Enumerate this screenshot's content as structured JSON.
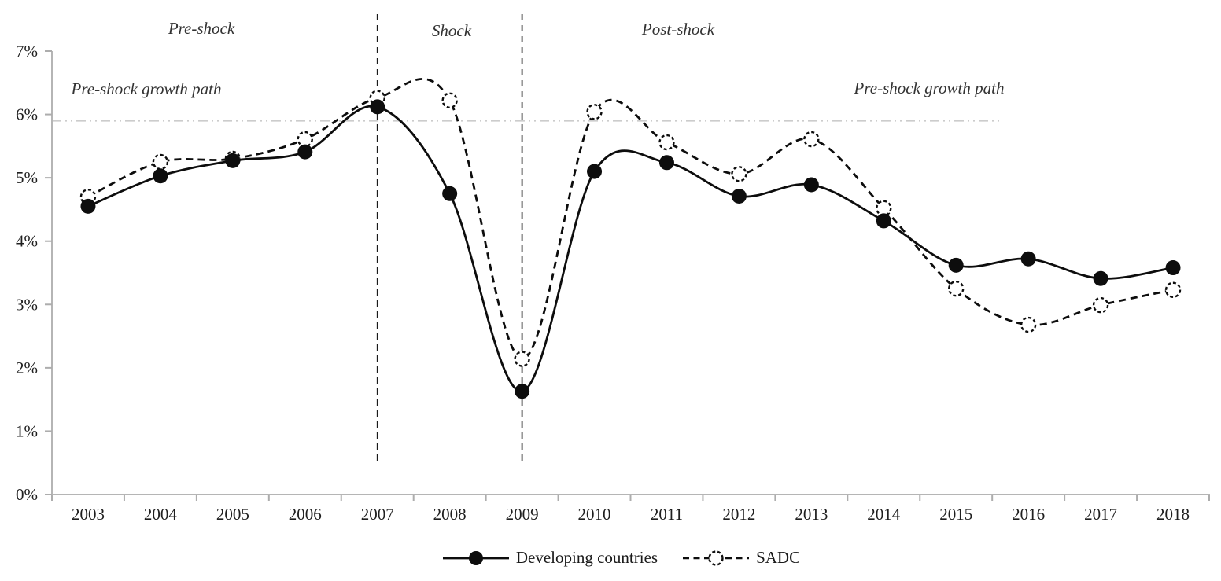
{
  "chart_data": {
    "type": "line",
    "title": "",
    "categories": [
      "2003",
      "2004",
      "2005",
      "2006",
      "2007",
      "2008",
      "2009",
      "2010",
      "2011",
      "2012",
      "2013",
      "2014",
      "2015",
      "2016",
      "2017",
      "2018"
    ],
    "series": [
      {
        "name": "Developing countries",
        "style": "solid",
        "marker": "filled-circle",
        "values": [
          4.55,
          5.03,
          5.27,
          5.41,
          6.12,
          4.75,
          1.63,
          5.1,
          5.24,
          4.71,
          4.89,
          4.32,
          3.62,
          3.72,
          3.41,
          3.58
        ]
      },
      {
        "name": "SADC",
        "style": "dashed",
        "marker": "dashed-open-circle",
        "values": [
          4.7,
          5.25,
          5.3,
          5.61,
          6.26,
          6.22,
          2.14,
          6.04,
          5.56,
          5.06,
          5.61,
          4.52,
          3.25,
          2.68,
          2.99,
          3.23
        ]
      }
    ],
    "ylim": [
      0,
      7
    ],
    "ytick_labels": [
      "0%",
      "1%",
      "2%",
      "3%",
      "4%",
      "5%",
      "6%",
      "7%"
    ],
    "grid": "off",
    "smoothing": "catmull-rom",
    "legend_position": "bottom-center",
    "phase_labels": [
      "Pre-shock",
      "Shock",
      "Post-shock"
    ],
    "reference_lines": [
      {
        "name": "pre-shock-growth-path",
        "orientation": "horizontal",
        "value": 5.9,
        "label": "Pre-shock growth path"
      },
      {
        "name": "shock-start",
        "orientation": "vertical",
        "x": "2007"
      },
      {
        "name": "shock-end",
        "orientation": "vertical",
        "x": "2009"
      }
    ]
  },
  "colors": {
    "series_line": "#0d0d0d",
    "axis": "#b5b5b5",
    "tick": "#adadad",
    "reference_line_gray": "#cccccc",
    "shock_line": "#1a1a1a",
    "tick_text": "#1f1f1f",
    "annotation_text": "#333333"
  }
}
